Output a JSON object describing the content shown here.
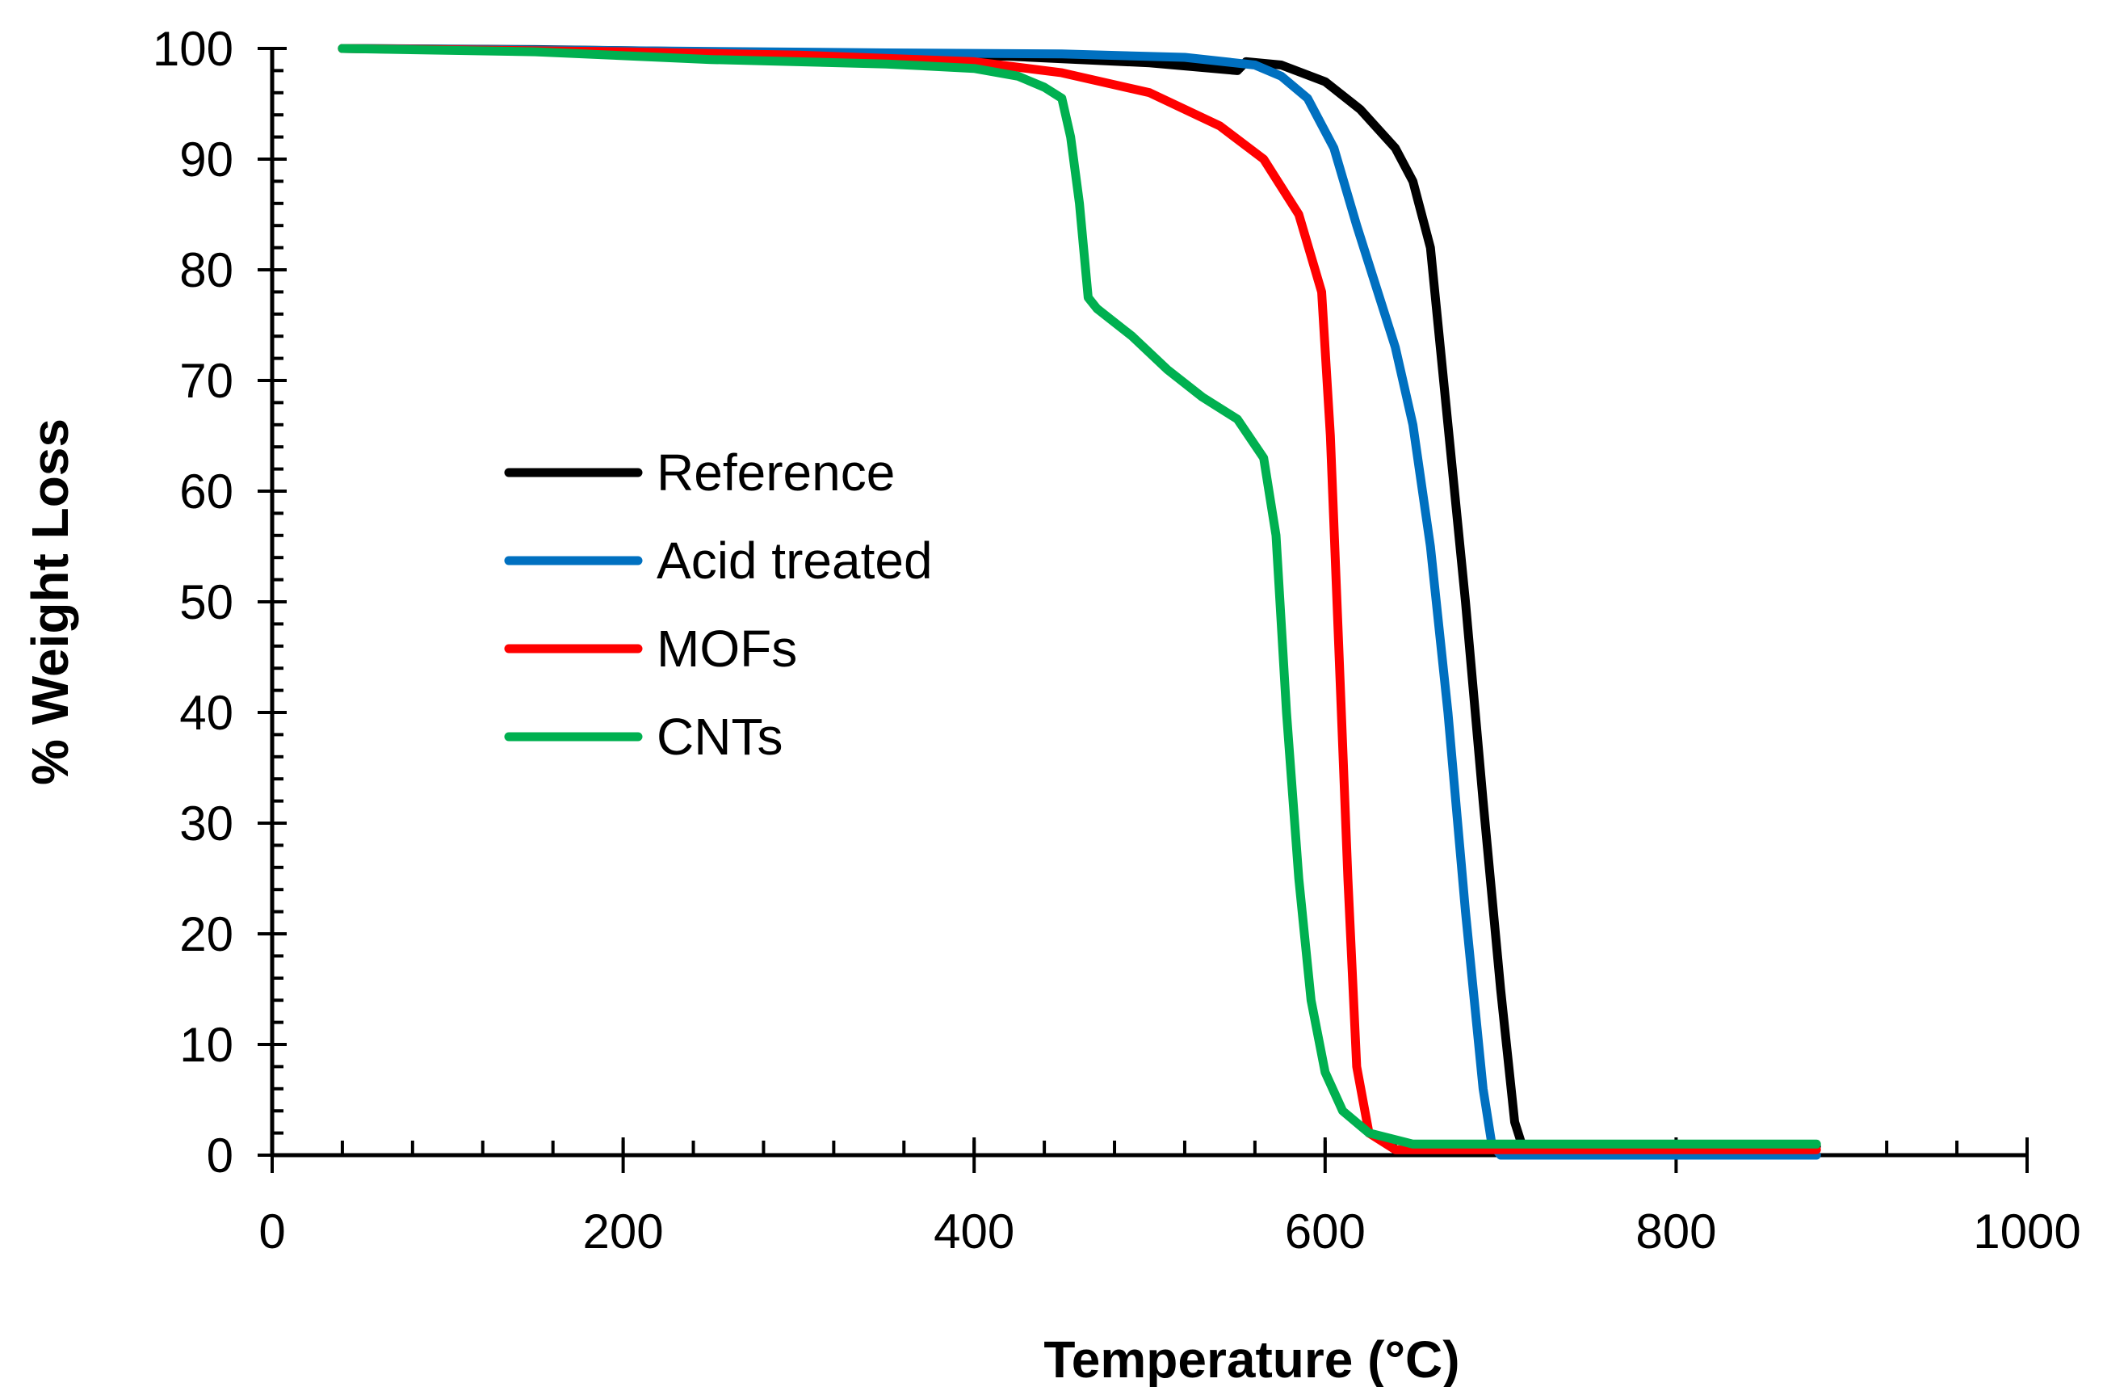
{
  "chart_data": {
    "type": "line",
    "title": "",
    "xlabel": "Temperature (°C)",
    "ylabel": "% Weight Loss",
    "xlim": [
      0,
      1000
    ],
    "ylim": [
      0,
      100
    ],
    "xticks": [
      0,
      200,
      400,
      600,
      800,
      1000
    ],
    "yticks": [
      0,
      10,
      20,
      30,
      40,
      50,
      60,
      70,
      80,
      90,
      100
    ],
    "x_minor_step": 40,
    "y_minor_step": 2,
    "grid": false,
    "legend_position": "center-left",
    "series": [
      {
        "name": "Reference",
        "color": "#000000",
        "points": [
          [
            40,
            100
          ],
          [
            150,
            99.9
          ],
          [
            300,
            99.6
          ],
          [
            420,
            99.3
          ],
          [
            500,
            98.7
          ],
          [
            550,
            98.0
          ],
          [
            555,
            98.8
          ],
          [
            575,
            98.5
          ],
          [
            600,
            97.0
          ],
          [
            620,
            94.5
          ],
          [
            640,
            91.0
          ],
          [
            650,
            88.0
          ],
          [
            660,
            82.0
          ],
          [
            670,
            66.0
          ],
          [
            680,
            50.0
          ],
          [
            690,
            32.0
          ],
          [
            700,
            15.0
          ],
          [
            708,
            3.0
          ],
          [
            712,
            1.0
          ],
          [
            740,
            0.8
          ],
          [
            800,
            0.8
          ],
          [
            880,
            0.8
          ]
        ]
      },
      {
        "name": "Acid treated",
        "color": "#0070c0",
        "points": [
          [
            40,
            100
          ],
          [
            200,
            99.8
          ],
          [
            350,
            99.6
          ],
          [
            450,
            99.5
          ],
          [
            520,
            99.2
          ],
          [
            560,
            98.5
          ],
          [
            575,
            97.5
          ],
          [
            590,
            95.5
          ],
          [
            605,
            91.0
          ],
          [
            618,
            84.0
          ],
          [
            630,
            78.0
          ],
          [
            640,
            73.0
          ],
          [
            650,
            66.0
          ],
          [
            660,
            55.0
          ],
          [
            670,
            40.0
          ],
          [
            680,
            22.0
          ],
          [
            690,
            6.0
          ],
          [
            695,
            1.0
          ],
          [
            700,
            0.0
          ],
          [
            750,
            0.0
          ],
          [
            880,
            0.0
          ]
        ]
      },
      {
        "name": "MOFs",
        "color": "#ff0000",
        "points": [
          [
            40,
            100
          ],
          [
            200,
            99.7
          ],
          [
            300,
            99.4
          ],
          [
            400,
            98.8
          ],
          [
            450,
            97.8
          ],
          [
            500,
            96.0
          ],
          [
            540,
            93.0
          ],
          [
            565,
            90.0
          ],
          [
            585,
            85.0
          ],
          [
            598,
            78.0
          ],
          [
            603,
            65.0
          ],
          [
            608,
            45.0
          ],
          [
            613,
            25.0
          ],
          [
            618,
            8.0
          ],
          [
            625,
            2.0
          ],
          [
            640,
            0.5
          ],
          [
            700,
            0.5
          ],
          [
            880,
            0.5
          ]
        ]
      },
      {
        "name": "CNTs",
        "color": "#00b050",
        "points": [
          [
            40,
            100
          ],
          [
            150,
            99.7
          ],
          [
            250,
            99.0
          ],
          [
            350,
            98.6
          ],
          [
            400,
            98.2
          ],
          [
            425,
            97.5
          ],
          [
            440,
            96.5
          ],
          [
            450,
            95.5
          ],
          [
            455,
            92.0
          ],
          [
            460,
            86.0
          ],
          [
            465,
            77.5
          ],
          [
            470,
            76.5
          ],
          [
            490,
            74.0
          ],
          [
            510,
            71.0
          ],
          [
            530,
            68.5
          ],
          [
            550,
            66.5
          ],
          [
            565,
            63.0
          ],
          [
            572,
            56.0
          ],
          [
            578,
            40.0
          ],
          [
            585,
            25.0
          ],
          [
            592,
            14.0
          ],
          [
            600,
            7.5
          ],
          [
            610,
            4.0
          ],
          [
            625,
            2.0
          ],
          [
            650,
            1.0
          ],
          [
            700,
            1.0
          ],
          [
            880,
            1.0
          ]
        ]
      }
    ]
  }
}
